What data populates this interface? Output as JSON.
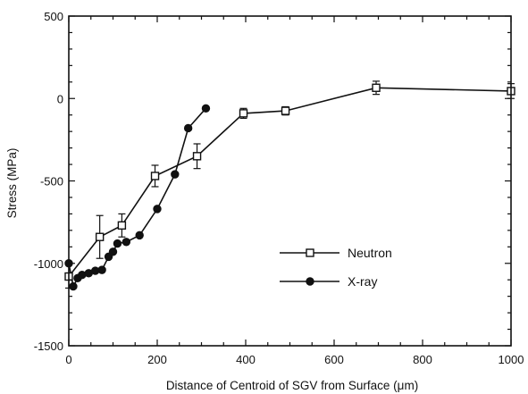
{
  "chart_data": {
    "type": "scatter",
    "title": "",
    "xlabel": "Distance of Centroid of SGV from Surface (μm)",
    "ylabel": "Stress (MPa)",
    "xlim": [
      0,
      1000
    ],
    "ylim": [
      -1500,
      500
    ],
    "xticks": [
      0,
      200,
      400,
      600,
      800,
      1000
    ],
    "yticks": [
      -1500,
      -1000,
      -500,
      0,
      500
    ],
    "grid": false,
    "legend_position": "lower-right",
    "series": [
      {
        "name": "Neutron",
        "marker": "open-square",
        "connected": true,
        "x": [
          0,
          70,
          120,
          195,
          290,
          395,
          490,
          695,
          1000
        ],
        "y": [
          -1080,
          -840,
          -770,
          -470,
          -350,
          -90,
          -75,
          65,
          45
        ],
        "yerr": [
          70,
          130,
          70,
          65,
          75,
          30,
          25,
          40,
          45
        ]
      },
      {
        "name": "X-ray",
        "marker": "filled-circle",
        "connected": true,
        "x": [
          0,
          10,
          20,
          30,
          45,
          60,
          75,
          90,
          100,
          110,
          130,
          160,
          200,
          240,
          270,
          310
        ],
        "y": [
          -1000,
          -1140,
          -1090,
          -1070,
          -1060,
          -1045,
          -1040,
          -960,
          -930,
          -880,
          -870,
          -830,
          -670,
          -460,
          -180,
          -60
        ]
      }
    ]
  }
}
